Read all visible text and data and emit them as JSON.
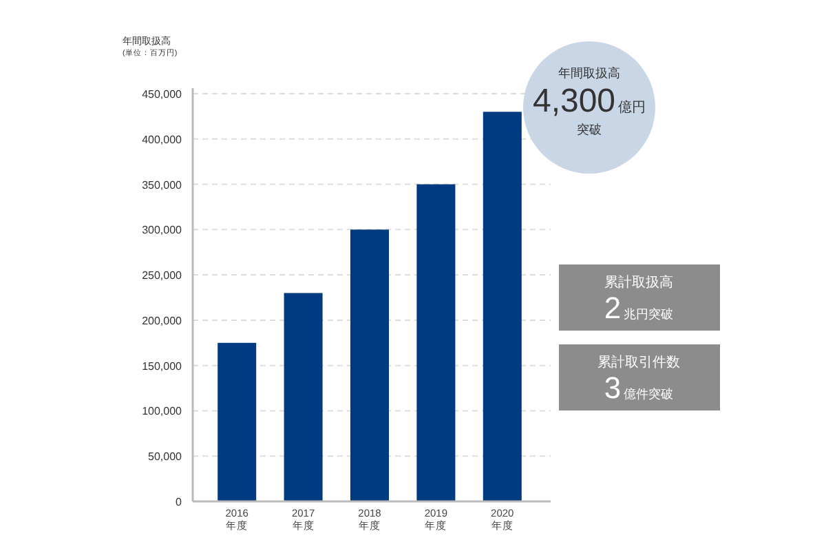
{
  "chart_data": {
    "type": "bar",
    "ylabel": "年間取扱高\n(単位：百万円)",
    "categories": [
      "2016\n年度",
      "2017\n年度",
      "2018\n年度",
      "2019\n年度",
      "2020\n年度"
    ],
    "values": [
      175000,
      230000,
      300000,
      350000,
      430000
    ],
    "color": "#003a80",
    "ylim": [
      0,
      450000
    ],
    "yticks": [
      {
        "value": 0,
        "label": "0"
      },
      {
        "value": 50000,
        "label": "50,000"
      },
      {
        "value": 100000,
        "label": "100,000"
      },
      {
        "value": 150000,
        "label": "150,000"
      },
      {
        "value": 200000,
        "label": "200,000"
      },
      {
        "value": 250000,
        "label": "250,000"
      },
      {
        "value": 300000,
        "label": "300,000"
      },
      {
        "value": 350000,
        "label": "350,000"
      },
      {
        "value": 400000,
        "label": "400,000"
      },
      {
        "value": 450000,
        "label": "450,000"
      }
    ],
    "grid": "y",
    "annotations": [
      "年間取扱高",
      "4,300億円",
      "突破",
      "累計取扱高",
      "2兆円突破",
      "累計取引件数",
      "3億件突破"
    ]
  }
}
